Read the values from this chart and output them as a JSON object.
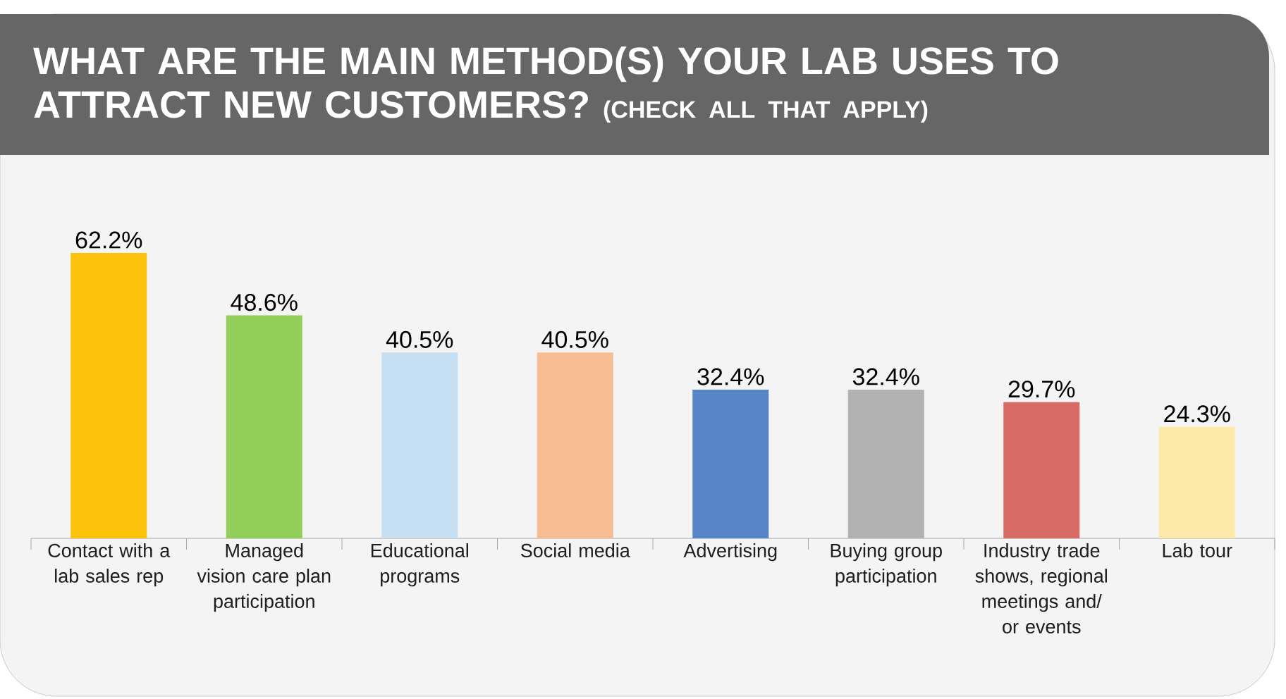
{
  "chart_data": {
    "type": "bar",
    "title": "WHAT ARE THE MAIN METHOD(S) YOUR LAB USES TO ATTRACT NEW CUSTOMERS?",
    "subtitle": "(CHECK ALL THAT APPLY)",
    "categories": [
      "Contact with a lab sales rep",
      "Managed vision care plan participation",
      "Educational programs",
      "Social media",
      "Advertising",
      "Buying group participation",
      "Industry trade shows, regional meetings and/ or events",
      "Lab tour"
    ],
    "values": [
      62.2,
      48.6,
      40.5,
      40.5,
      32.4,
      32.4,
      29.7,
      24.3
    ],
    "value_labels": [
      "62.2%",
      "48.6%",
      "40.5%",
      "40.5%",
      "32.4%",
      "32.4%",
      "29.7%",
      "24.3%"
    ],
    "colors": [
      "#fdc20c",
      "#92cf5a",
      "#c7dff3",
      "#f7bd92",
      "#5885c8",
      "#b2b2b2",
      "#d96b67",
      "#fdeaaa"
    ]
  }
}
